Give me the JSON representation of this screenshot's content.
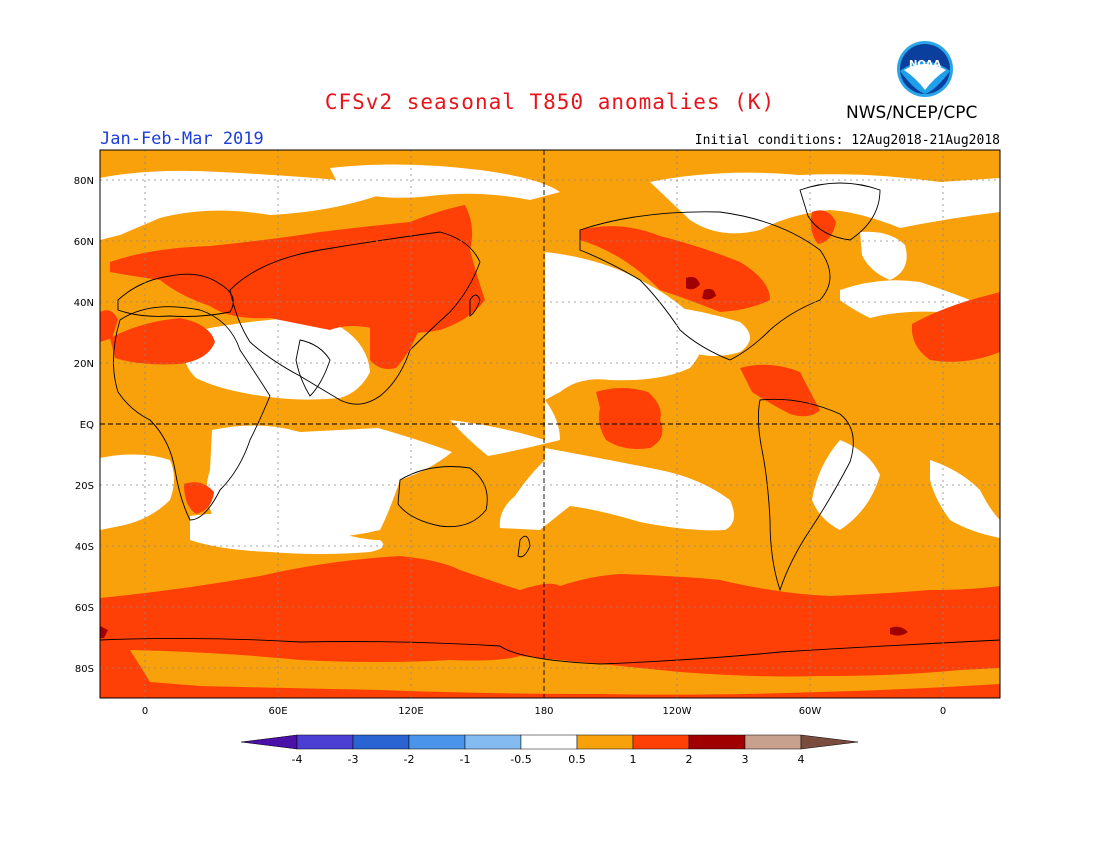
{
  "header": {
    "title": "CFSv2 seasonal T850 anomalies (K)",
    "agency": "NWS/NCEP/CPC",
    "season": "Jan-Feb-Mar 2019",
    "initial_conditions": "Initial conditions: 12Aug2018-21Aug2018",
    "logo_text": "NOAA"
  },
  "axes": {
    "lat_labels": [
      "80N",
      "60N",
      "40N",
      "20N",
      "EQ",
      "20S",
      "40S",
      "60S",
      "80S"
    ],
    "lon_labels": [
      "0",
      "60E",
      "120E",
      "180",
      "120W",
      "60W",
      "0"
    ]
  },
  "legend": {
    "boundary_labels": [
      "-4",
      "-3",
      "-2",
      "-1",
      "-0.5",
      "0.5",
      "1",
      "2",
      "3",
      "4"
    ],
    "colors": [
      "#4a10a8",
      "#4a3fd2",
      "#2a63d2",
      "#4a94ec",
      "#84bcf2",
      "#ffffff",
      "#f9a10b",
      "#fe3f06",
      "#a00000",
      "#c7a08e",
      "#7a4c3e"
    ]
  },
  "colors": {
    "title": "#e8141c",
    "season": "#1c3ed8",
    "anomaly_0.5_1": "#f9a10b",
    "anomaly_1_2": "#fe3f06",
    "anomaly_2_3": "#a00000",
    "neutral": "#ffffff"
  }
}
